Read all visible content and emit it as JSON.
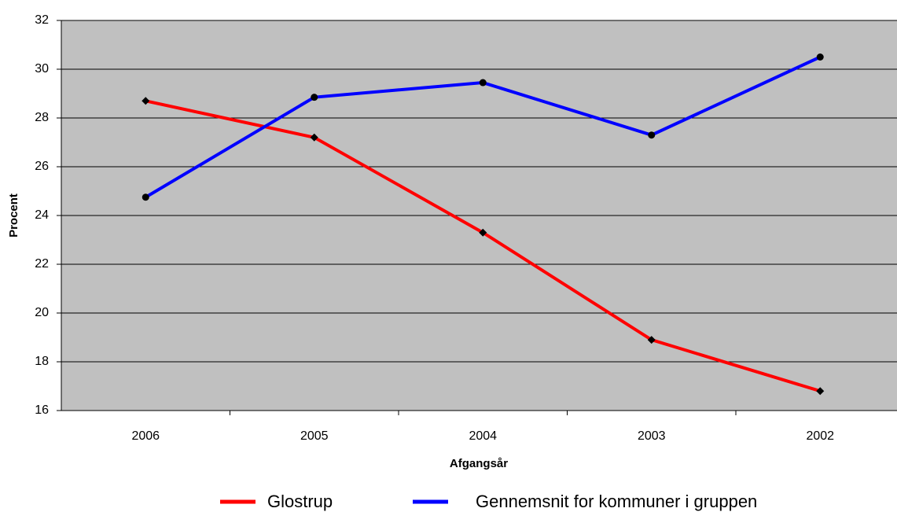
{
  "chart_data": {
    "type": "line",
    "x_label": "Afgangsår",
    "y_label": "Procent",
    "categories": [
      "2006",
      "2005",
      "2004",
      "2003",
      "2002"
    ],
    "series": [
      {
        "name": "Glostrup",
        "color": "#ff0000",
        "marker": "diamond",
        "values": [
          28.7,
          27.2,
          23.3,
          18.9,
          16.8
        ]
      },
      {
        "name": "Gennemsnit for kommuner i gruppen",
        "color": "#0000ff",
        "marker": "circle",
        "values": [
          24.75,
          28.85,
          29.45,
          27.3,
          30.5
        ]
      }
    ],
    "ylim": [
      16,
      32
    ],
    "yticks": [
      16,
      18,
      20,
      22,
      24,
      26,
      28,
      30,
      32
    ],
    "grid": true
  }
}
